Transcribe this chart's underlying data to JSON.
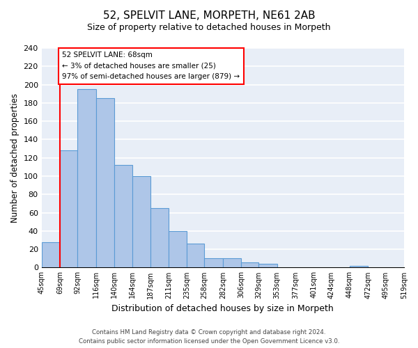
{
  "title": "52, SPELVIT LANE, MORPETH, NE61 2AB",
  "subtitle": "Size of property relative to detached houses in Morpeth",
  "xlabel": "Distribution of detached houses by size in Morpeth",
  "ylabel": "Number of detached properties",
  "bar_edges": [
    45,
    69,
    92,
    116,
    140,
    164,
    187,
    211,
    235,
    258,
    282,
    306,
    329,
    353,
    377,
    401,
    424,
    448,
    472,
    495,
    519
  ],
  "bar_heights": [
    28,
    128,
    195,
    185,
    112,
    100,
    65,
    40,
    26,
    10,
    10,
    6,
    4,
    0,
    0,
    0,
    0,
    2,
    0,
    0
  ],
  "bar_color": "#aec6e8",
  "bar_edge_color": "#5b9bd5",
  "tick_labels": [
    "45sqm",
    "69sqm",
    "92sqm",
    "116sqm",
    "140sqm",
    "164sqm",
    "187sqm",
    "211sqm",
    "235sqm",
    "258sqm",
    "282sqm",
    "306sqm",
    "329sqm",
    "353sqm",
    "377sqm",
    "401sqm",
    "424sqm",
    "448sqm",
    "472sqm",
    "495sqm",
    "519sqm"
  ],
  "ylim": [
    0,
    240
  ],
  "yticks": [
    0,
    20,
    40,
    60,
    80,
    100,
    120,
    140,
    160,
    180,
    200,
    220,
    240
  ],
  "property_label": "52 SPELVIT LANE: 68sqm",
  "annotation_line1": "← 3% of detached houses are smaller (25)",
  "annotation_line2": "97% of semi-detached houses are larger (879) →",
  "vline_x": 69,
  "bg_color": "#e8eef7",
  "footer_line1": "Contains HM Land Registry data © Crown copyright and database right 2024.",
  "footer_line2": "Contains public sector information licensed under the Open Government Licence v3.0."
}
